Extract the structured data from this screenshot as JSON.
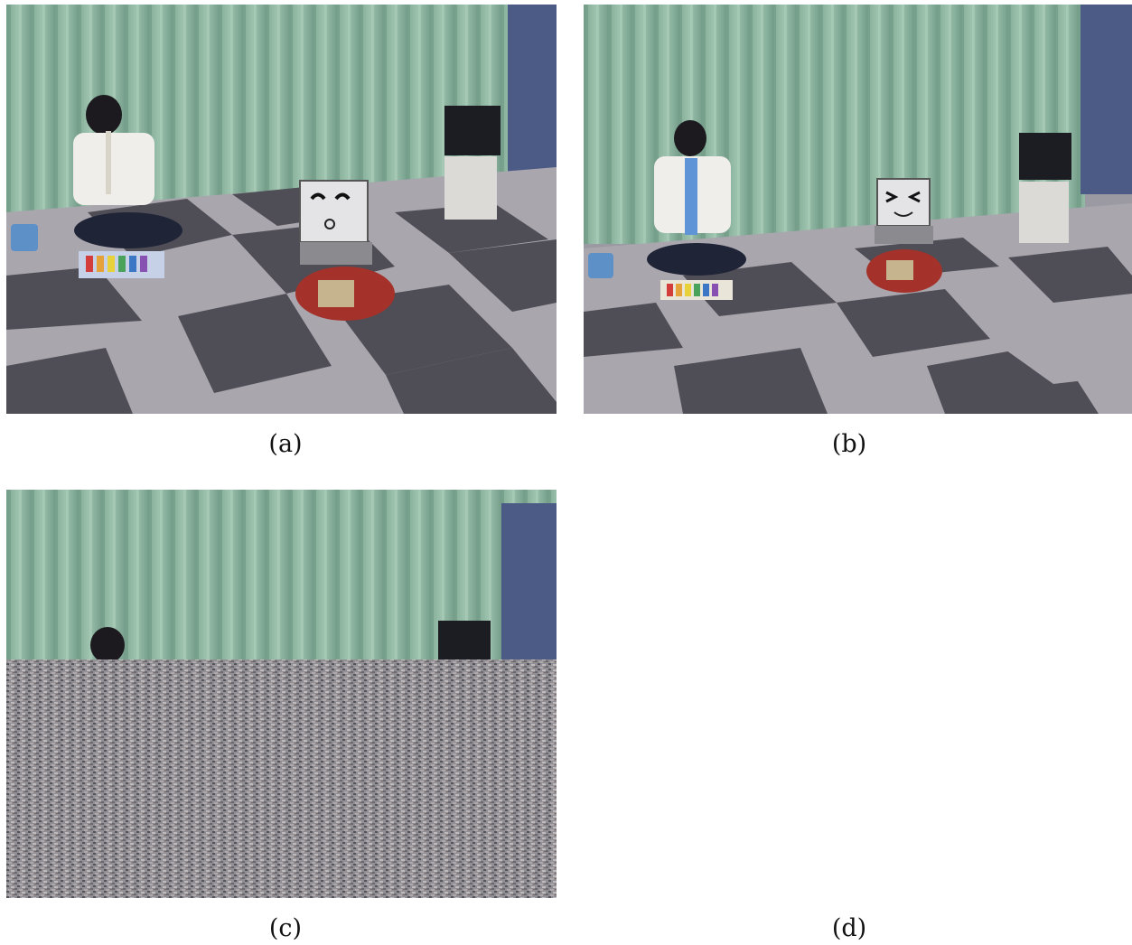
{
  "panels": [
    {
      "id": "a",
      "caption": "(a)",
      "robot_expression": "neutral",
      "person_pose": "playing-recorder"
    },
    {
      "id": "b",
      "caption": "(b)",
      "robot_expression": "squinting-smile",
      "person_pose": "playing-pianica"
    },
    {
      "id": "c",
      "caption": "(c)",
      "content": "partially-corrupted-photo"
    },
    {
      "id": "d",
      "caption": "(d)",
      "content": "empty"
    }
  ],
  "colors": {
    "curtain": "#8fb7a2",
    "curtain_shadow": "#6f9985",
    "floor_light": "#a9a6ae",
    "floor_dark": "#4f4d55",
    "wall_panel": "#4b5b86",
    "robot_red": "#a4322a"
  }
}
